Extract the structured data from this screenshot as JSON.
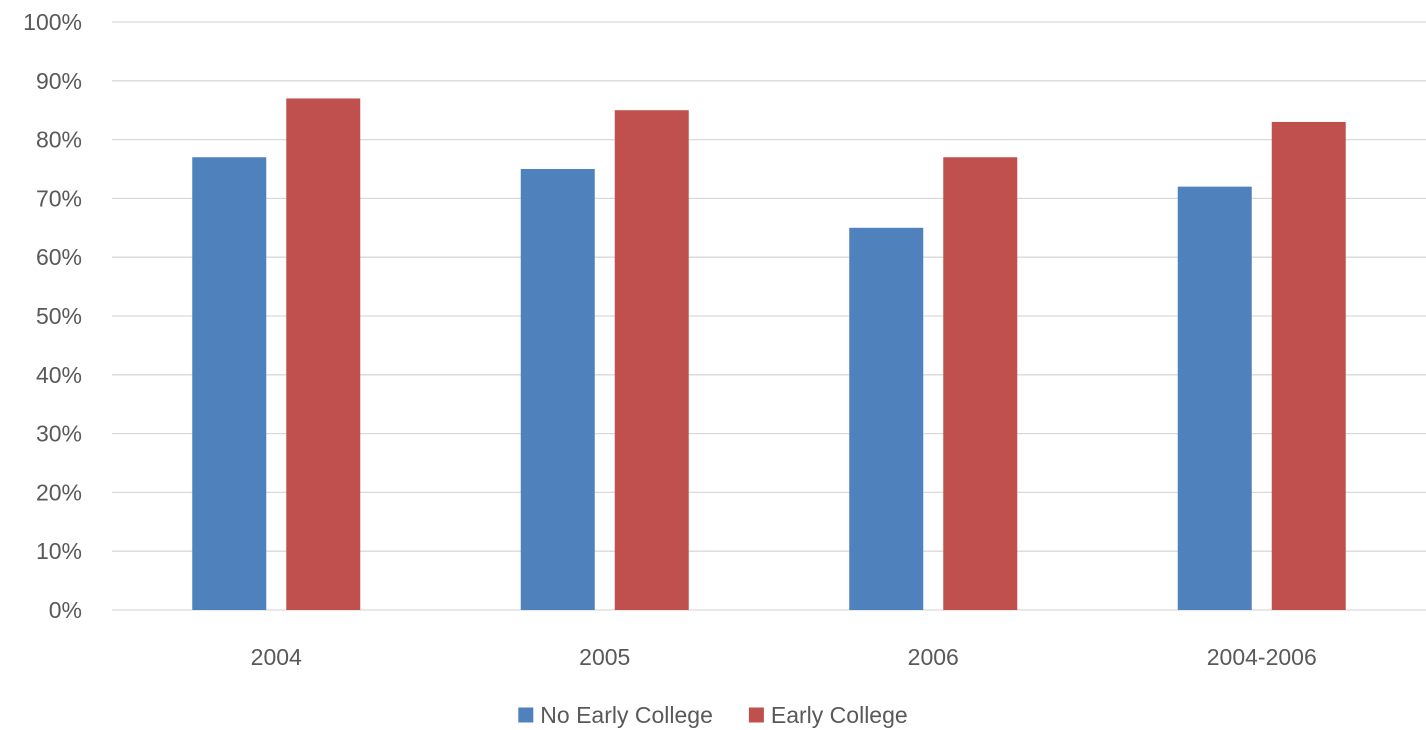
{
  "chart_data": {
    "type": "bar",
    "title": "",
    "xlabel": "",
    "ylabel": "",
    "categories": [
      "2004",
      "2005",
      "2006",
      "2004-2006"
    ],
    "series": [
      {
        "name": "No Early College",
        "color": "#4F81BD",
        "values": [
          77,
          75,
          65,
          72
        ]
      },
      {
        "name": "Early College",
        "color": "#C0504D",
        "values": [
          87,
          85,
          77,
          83
        ]
      }
    ],
    "ylim": [
      0,
      100
    ],
    "y_ticks": [
      0,
      10,
      20,
      30,
      40,
      50,
      60,
      70,
      80,
      90,
      100
    ],
    "y_tick_format": "percent",
    "grid": true,
    "grid_color": "#D9D9D9",
    "legend_position": "bottom"
  }
}
